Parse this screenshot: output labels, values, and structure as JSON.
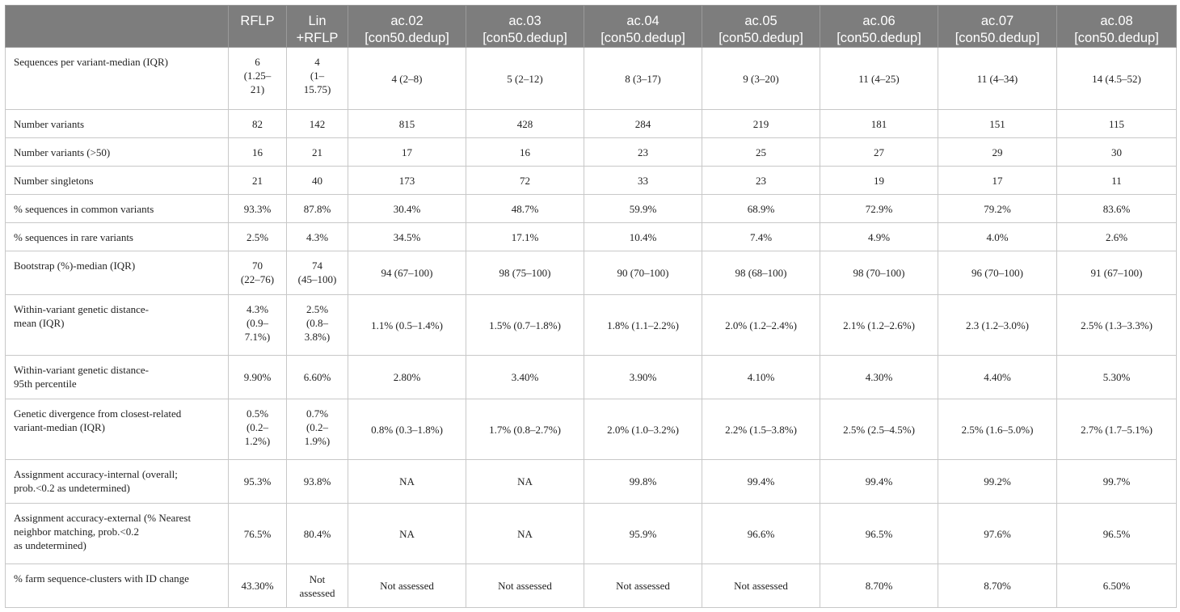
{
  "table": {
    "columns": [
      "",
      "RFLP",
      "Lin\n+RFLP",
      "ac.02\n[con50.dedup]",
      "ac.03\n[con50.dedup]",
      "ac.04\n[con50.dedup]",
      "ac.05\n[con50.dedup]",
      "ac.06\n[con50.dedup]",
      "ac.07\n[con50.dedup]",
      "ac.08\n[con50.dedup]"
    ],
    "rows": [
      {
        "label": "Sequences per variant-median (IQR)",
        "cells": [
          "6\n(1.25–\n21)",
          "4\n(1–\n15.75)",
          "4 (2–8)",
          "5 (2–12)",
          "8 (3–17)",
          "9 (3–20)",
          "11 (4–25)",
          "11 (4–34)",
          "14 (4.5–52)"
        ]
      },
      {
        "label": "Number variants",
        "cells": [
          "82",
          "142",
          "815",
          "428",
          "284",
          "219",
          "181",
          "151",
          "115"
        ]
      },
      {
        "label": "Number variants (>50)",
        "cells": [
          "16",
          "21",
          "17",
          "16",
          "23",
          "25",
          "27",
          "29",
          "30"
        ]
      },
      {
        "label": "Number singletons",
        "cells": [
          "21",
          "40",
          "173",
          "72",
          "33",
          "23",
          "19",
          "17",
          "11"
        ]
      },
      {
        "label": "% sequences in common variants",
        "cells": [
          "93.3%",
          "87.8%",
          "30.4%",
          "48.7%",
          "59.9%",
          "68.9%",
          "72.9%",
          "79.2%",
          "83.6%"
        ]
      },
      {
        "label": "% sequences in rare variants",
        "cells": [
          "2.5%",
          "4.3%",
          "34.5%",
          "17.1%",
          "10.4%",
          "7.4%",
          "4.9%",
          "4.0%",
          "2.6%"
        ]
      },
      {
        "label": "Bootstrap (%)-median (IQR)",
        "cells": [
          "70\n(22–76)",
          "74\n(45–100)",
          "94 (67–100)",
          "98 (75–100)",
          "90 (70–100)",
          "98 (68–100)",
          "98 (70–100)",
          "96 (70–100)",
          "91 (67–100)"
        ]
      },
      {
        "label": "Within-variant genetic distance-\nmean (IQR)",
        "cells": [
          "4.3%\n(0.9–\n7.1%)",
          "2.5%\n(0.8–\n3.8%)",
          "1.1% (0.5–1.4%)",
          "1.5% (0.7–1.8%)",
          "1.8% (1.1–2.2%)",
          "2.0% (1.2–2.4%)",
          "2.1% (1.2–2.6%)",
          "2.3 (1.2–3.0%)",
          "2.5% (1.3–3.3%)"
        ]
      },
      {
        "label": "Within-variant genetic distance-\n95th percentile",
        "cells": [
          "9.90%",
          "6.60%",
          "2.80%",
          "3.40%",
          "3.90%",
          "4.10%",
          "4.30%",
          "4.40%",
          "5.30%"
        ]
      },
      {
        "label": "Genetic divergence from closest-related\nvariant-median (IQR)",
        "cells": [
          "0.5%\n(0.2–\n1.2%)",
          "0.7%\n(0.2–\n1.9%)",
          "0.8% (0.3–1.8%)",
          "1.7% (0.8–2.7%)",
          "2.0% (1.0–3.2%)",
          "2.2% (1.5–3.8%)",
          "2.5% (2.5–4.5%)",
          "2.5% (1.6–5.0%)",
          "2.7% (1.7–5.1%)"
        ]
      },
      {
        "label": "Assignment accuracy-internal (overall;\nprob.<0.2 as undetermined)",
        "cells": [
          "95.3%",
          "93.8%",
          "NA",
          "NA",
          "99.8%",
          "99.4%",
          "99.4%",
          "99.2%",
          "99.7%"
        ]
      },
      {
        "label": "Assignment accuracy-external (% Nearest\nneighbor matching, prob.<0.2\nas undetermined)",
        "cells": [
          "76.5%",
          "80.4%",
          "NA",
          "NA",
          "95.9%",
          "96.6%",
          "96.5%",
          "97.6%",
          "96.5%"
        ]
      },
      {
        "label": "% farm sequence-clusters with ID change",
        "cells": [
          "43.30%",
          "Not\nassessed",
          "Not assessed",
          "Not assessed",
          "Not assessed",
          "Not assessed",
          "8.70%",
          "8.70%",
          "6.50%"
        ]
      }
    ]
  }
}
